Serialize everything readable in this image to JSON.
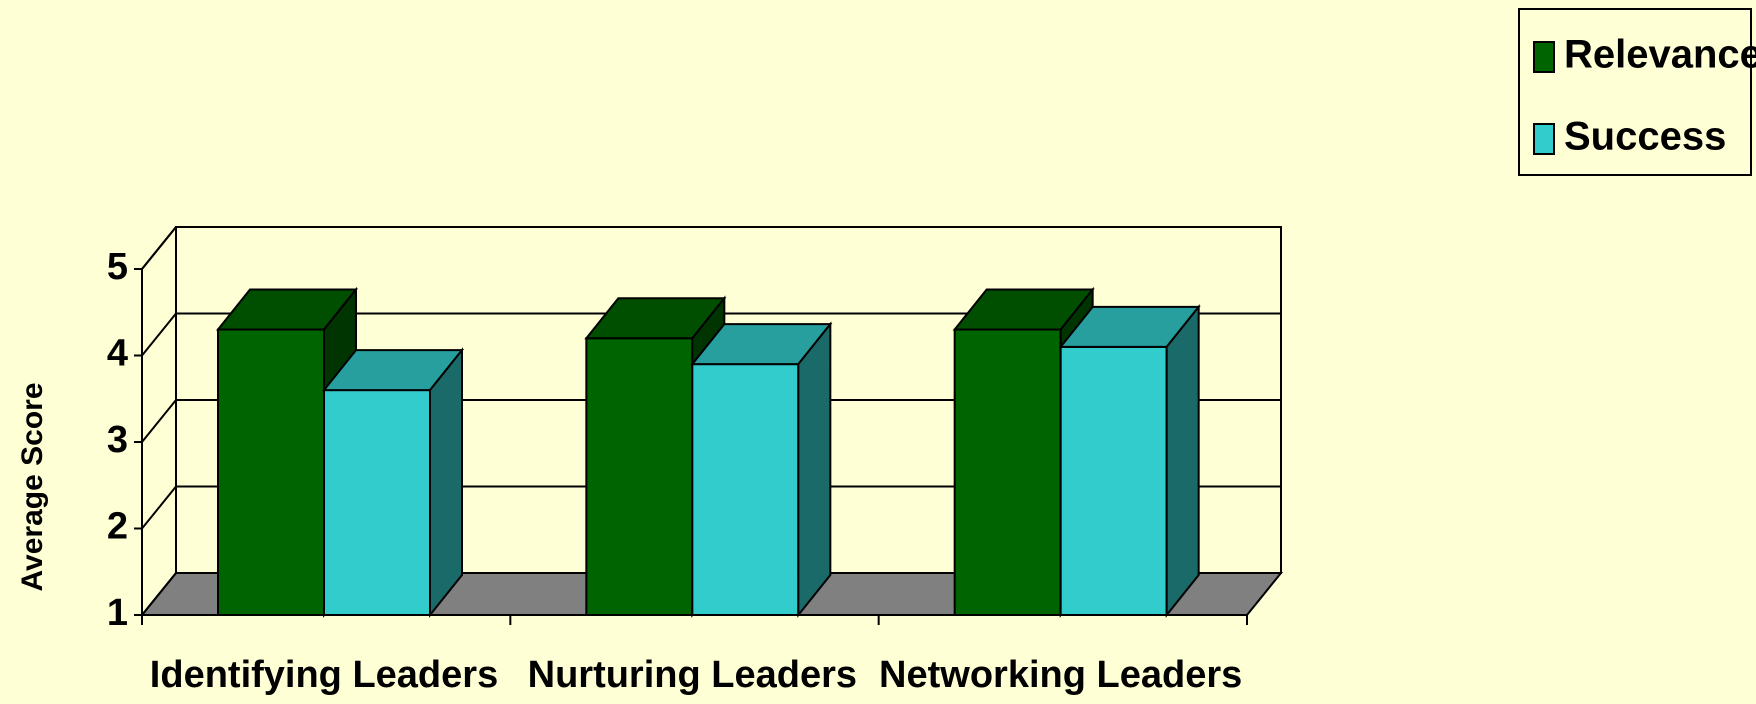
{
  "chart_data": {
    "type": "bar3d",
    "categories": [
      "Identifying Leaders",
      "Nurturing Leaders",
      "Networking Leaders"
    ],
    "series": [
      {
        "name": "Relevance",
        "color": "#006400",
        "values": [
          4.3,
          4.2,
          4.3
        ]
      },
      {
        "name": "Success",
        "color": "#33cccc",
        "values": [
          3.6,
          3.9,
          4.1
        ]
      }
    ],
    "ylabel": "Average Score",
    "ylim": [
      1,
      5
    ],
    "yticks": [
      1,
      2,
      3,
      4,
      5
    ],
    "grid": true,
    "legend": "top-right"
  }
}
